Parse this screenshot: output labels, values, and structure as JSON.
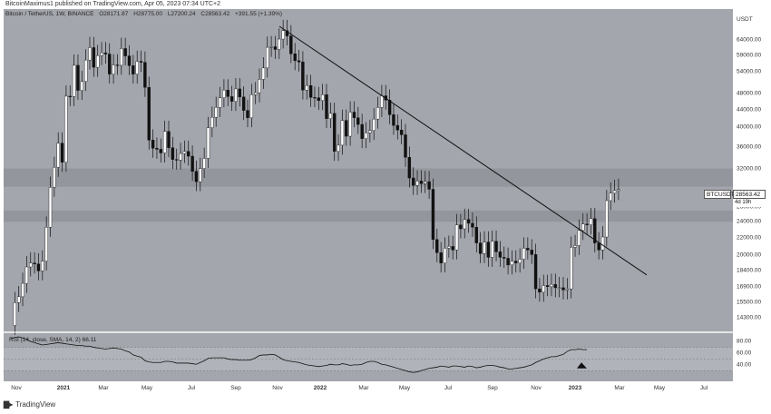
{
  "header": {
    "publisher_line": "BitcoinMaximus1 published on TradingView.com, Apr 05, 2023 07:34 UTC+2"
  },
  "legend": {
    "symbol": "Bitcoin / TetherUS, 1W, BINANCE",
    "open": "O28171.87",
    "high": "H28775.00",
    "low": "L27200.24",
    "close": "C28563.42",
    "change": "+391.55 (+1.39%)"
  },
  "rsi_legend": {
    "label": "RSI (14, close, SMA, 14, 2)",
    "value": "66.11"
  },
  "price_axis": {
    "unit": "USDT",
    "labels": [
      "64000.00",
      "59000.00",
      "54000.00",
      "48000.00",
      "44000.00",
      "40000.00",
      "36000.00",
      "32000.00",
      "28000.00",
      "26000.00",
      "24000.00",
      "22000.00",
      "20000.00",
      "18400.00",
      "16900.00",
      "15500.00",
      "14300.00"
    ]
  },
  "rsi_axis": {
    "labels": [
      "80.00",
      "60.00",
      "40.00"
    ]
  },
  "price_tag": {
    "ticker": "BTCUSDT",
    "value": "28563.42",
    "countdown": "4d 19h"
  },
  "time_axis": {
    "labels": [
      {
        "text": "Nov",
        "bold": false
      },
      {
        "text": "2021",
        "bold": true
      },
      {
        "text": "Mar",
        "bold": false
      },
      {
        "text": "May",
        "bold": false
      },
      {
        "text": "Jul",
        "bold": false
      },
      {
        "text": "Sep",
        "bold": false
      },
      {
        "text": "Nov",
        "bold": false
      },
      {
        "text": "2022",
        "bold": true
      },
      {
        "text": "Mar",
        "bold": false
      },
      {
        "text": "May",
        "bold": false
      },
      {
        "text": "Jul",
        "bold": false
      },
      {
        "text": "Sep",
        "bold": false
      },
      {
        "text": "Nov",
        "bold": false
      },
      {
        "text": "2023",
        "bold": true
      },
      {
        "text": "Mar",
        "bold": false
      },
      {
        "text": "May",
        "bold": false
      },
      {
        "text": "Jul",
        "bold": false
      }
    ]
  },
  "footer": {
    "brand": "TradingView"
  },
  "colors": {
    "background": "#a3a6ad",
    "bull": "#ffffff",
    "bear": "#111111",
    "zone": "#8d9097"
  },
  "chart_data": {
    "type": "candlestick",
    "interval": "1W",
    "symbol": "BTCUSDT",
    "resistance_zones": [
      [
        29000,
        32000
      ],
      [
        24000,
        25500
      ]
    ],
    "descending_trendline": {
      "from": {
        "date": "2021-11",
        "price": 69000
      },
      "to": {
        "date": "2023-04",
        "price": 18000
      }
    },
    "closes": [
      13700,
      15500,
      16000,
      17200,
      18800,
      19200,
      19100,
      18400,
      19400,
      23300,
      28900,
      32200,
      36700,
      33100,
      47300,
      47200,
      55900,
      48800,
      51200,
      57500,
      61500,
      55300,
      58900,
      59800,
      59400,
      53300,
      56000,
      55900,
      61200,
      58800,
      55800,
      53300,
      57100,
      56800,
      49600,
      37300,
      35700,
      35500,
      34800,
      39100,
      35800,
      33600,
      33500,
      34700,
      35100,
      34200,
      31500,
      29800,
      32000,
      33800,
      39900,
      42200,
      44500,
      46900,
      48900,
      47200,
      46000,
      49200,
      47100,
      43800,
      42100,
      47700,
      48200,
      51800,
      55100,
      61600,
      61800,
      60900,
      64400,
      67400,
      65500,
      59500,
      57300,
      56900,
      48900,
      50100,
      47000,
      46900,
      46200,
      47700,
      41900,
      43100,
      35100,
      36300,
      41500,
      38100,
      43400,
      42100,
      40600,
      37600,
      38800,
      39300,
      41800,
      44500,
      47400,
      46300,
      42800,
      40400,
      39400,
      38400,
      34000,
      30400,
      29200,
      29900,
      29500,
      29800,
      28600,
      21800,
      20300,
      19200,
      20800,
      21000,
      20600,
      23600,
      23100,
      24300,
      23800,
      23300,
      21400,
      20200,
      21500,
      19800,
      21600,
      20400,
      19800,
      19700,
      19000,
      19400,
      19200,
      19600,
      20800,
      20600,
      20100,
      16700,
      16400,
      17000,
      16900,
      17100,
      16800,
      16800,
      16600,
      16700,
      20900,
      21100,
      22900,
      23700,
      23600,
      24400,
      21400,
      20600,
      22100,
      26900,
      28000,
      28400,
      28563
    ],
    "rsi": [
      85,
      87,
      88,
      86,
      84,
      80,
      78,
      76,
      74,
      75,
      76,
      77,
      78,
      77,
      76,
      75,
      74,
      73,
      73,
      72,
      72,
      70,
      69,
      68,
      67,
      68,
      69,
      68,
      67,
      64,
      62,
      57,
      55,
      53,
      47,
      45,
      44,
      44,
      44,
      46,
      46,
      45,
      43,
      43,
      43,
      43,
      42,
      41,
      44,
      47,
      51,
      52,
      52,
      52,
      52,
      50,
      49,
      49,
      48,
      48,
      48,
      49,
      52,
      56,
      57,
      57,
      58,
      57,
      53,
      49,
      47,
      46,
      45,
      44,
      42,
      40,
      39,
      38,
      37,
      38,
      39,
      41,
      40,
      40,
      42,
      41,
      39,
      40,
      40,
      41,
      44,
      46,
      46,
      44,
      41,
      40,
      38,
      36,
      34,
      32,
      30,
      28,
      27,
      28,
      30,
      32,
      34,
      35,
      36,
      38,
      37,
      36,
      38,
      38,
      37,
      36,
      38,
      37,
      35,
      36,
      38,
      39,
      39,
      38,
      36,
      35,
      33,
      33,
      34,
      35,
      36,
      38,
      40,
      44,
      47,
      50,
      52,
      54,
      54,
      56,
      58,
      63,
      66,
      66,
      67,
      66,
      66
    ]
  }
}
